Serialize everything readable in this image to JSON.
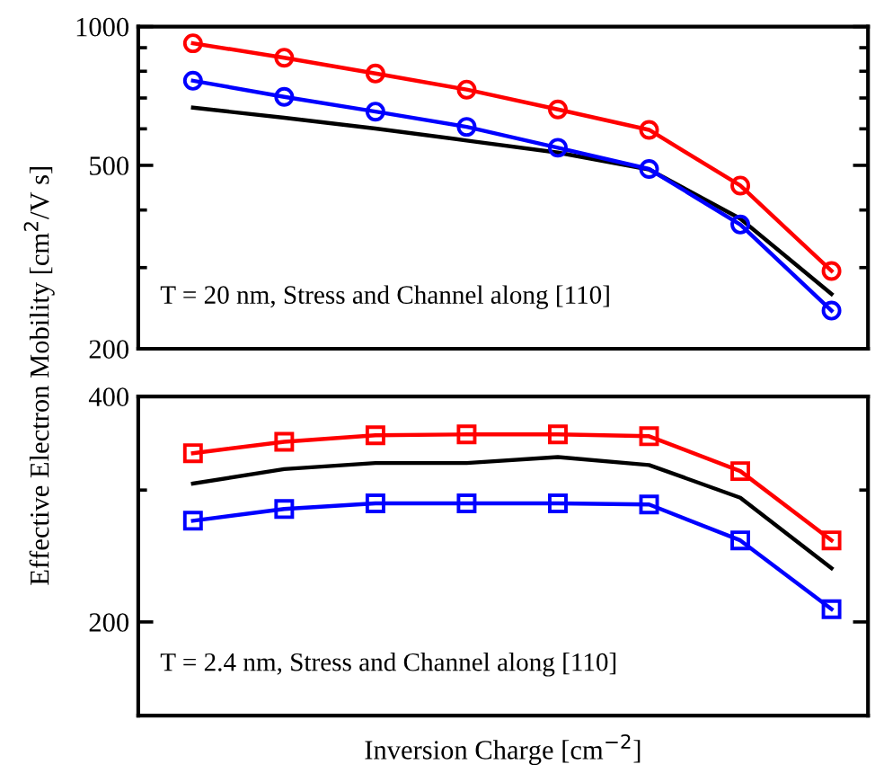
{
  "chart_data": [
    {
      "type": "line",
      "ylabel": "Effective Electron Mobility [cm$^{2}$/V s]",
      "log": "y",
      "ylim": [
        200,
        1000
      ],
      "categories": [
        null,
        null,
        null,
        null,
        null,
        null,
        null,
        null
      ],
      "yticks": [
        200,
        {
          "value": 300,
          "label": null
        },
        {
          "value": 400,
          "label": null
        },
        500,
        {
          "value": 600,
          "label": null
        },
        {
          "value": 700,
          "label": null
        },
        {
          "value": 800,
          "label": null
        },
        {
          "value": 900,
          "label": null
        },
        1000
      ],
      "tick_labels": "y",
      "annotations": [
        "T = 20 nm, Stress and Channel along [110]"
      ],
      "series": [
        {
          "color": "#ff0000",
          "marker": "circle",
          "values": [
            920,
            856,
            791,
            730,
            661,
            597,
            452,
            295
          ]
        },
        {
          "color": "#0000ff",
          "marker": "circle",
          "values": [
            763,
            704,
            654,
            606,
            546,
            491,
            372,
            242
          ]
        },
        {
          "color": "#000000",
          "marker": "none",
          "values": [
            667,
            634,
            601,
            566,
            533,
            490,
            383,
            263
          ]
        }
      ]
    },
    {
      "type": "line",
      "xlabel": "Inversion Charge [cm$^{−2}$]",
      "log": "y",
      "ylim": [
        150,
        400
      ],
      "categories": [
        null,
        null,
        null,
        null,
        null,
        null,
        null,
        null
      ],
      "yticks": [
        200,
        {
          "value": 300,
          "label": null
        },
        400
      ],
      "tick_labels": "y",
      "annotations": [
        "T = 2.4 nm, Stress and Channel along [110]"
      ],
      "series": [
        {
          "color": "#ff0000",
          "marker": "square",
          "values": [
            336,
            348,
            355,
            356,
            356,
            354,
            318,
            257
          ]
        },
        {
          "color": "#0000ff",
          "marker": "square",
          "values": [
            273,
            283,
            288,
            288,
            288,
            287,
            257,
            208
          ]
        },
        {
          "color": "#000000",
          "marker": "none",
          "values": [
            306,
            320,
            326,
            326,
            332,
            324,
            293,
            236
          ]
        }
      ]
    }
  ]
}
